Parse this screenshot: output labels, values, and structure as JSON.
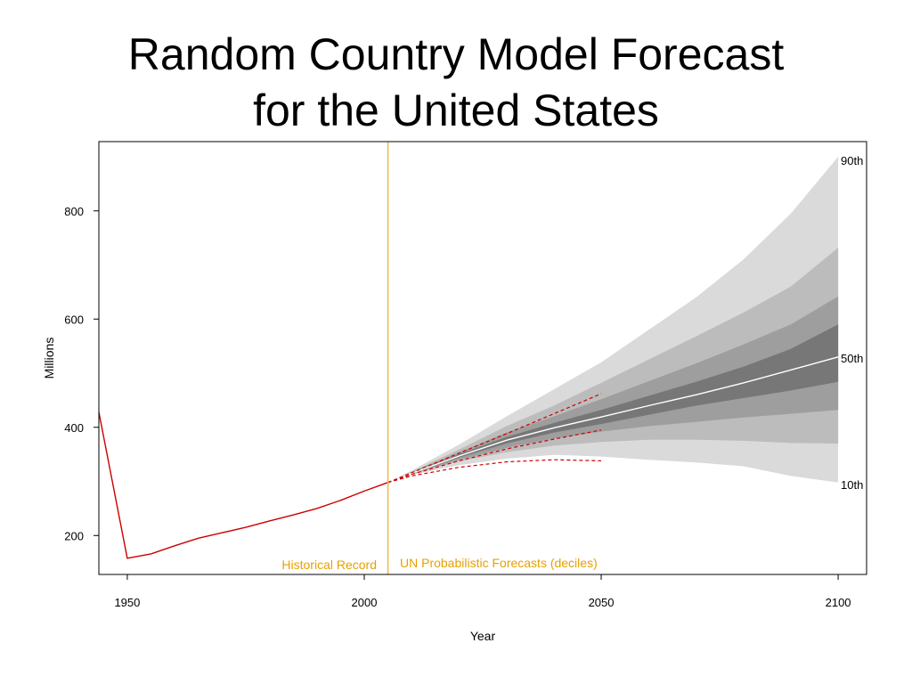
{
  "title": {
    "line1": "Random Country Model Forecast",
    "line2": "for the United States"
  },
  "chart_data": {
    "type": "area",
    "xlabel": "Year",
    "ylabel": "Millions",
    "xlim": [
      1944,
      2106
    ],
    "ylim": [
      128,
      928
    ],
    "xticks": [
      1950,
      2000,
      2050,
      2100
    ],
    "yticks": [
      200,
      400,
      600,
      800
    ],
    "grid": false,
    "divider_year": 2005,
    "divider_color": "#f0b840",
    "forecast_color": "#e8a000",
    "history_color": "#cc0000",
    "band_colors": [
      "#dadada",
      "#bcbcbc",
      "#9e9e9e",
      "#777777"
    ],
    "median_color": "#ffffff",
    "annotations": {
      "historical_label": "Historical Record",
      "forecast_label": "UN Probabilistic Forecasts (deciles)",
      "p90": "90th",
      "p50": "50th",
      "p10": "10th"
    },
    "historical": {
      "x": [
        1944,
        1950,
        1955,
        1960,
        1965,
        1970,
        1975,
        1980,
        1985,
        1990,
        1995,
        2000,
        2005
      ],
      "y": [
        428,
        158,
        166,
        181,
        195,
        205,
        215,
        227,
        238,
        250,
        265,
        282,
        298
      ]
    },
    "forecast": {
      "x": [
        2005,
        2010,
        2020,
        2030,
        2040,
        2050,
        2060,
        2070,
        2080,
        2090,
        2100
      ],
      "deciles": {
        "p10": [
          298,
          312,
          330,
          342,
          349,
          346,
          340,
          335,
          328,
          310,
          298
        ],
        "p20": [
          298,
          313,
          337,
          354,
          366,
          373,
          377,
          377,
          375,
          371,
          370
        ],
        "p30": [
          298,
          314,
          340,
          362,
          379,
          392,
          402,
          410,
          418,
          425,
          432
        ],
        "p40": [
          298,
          314,
          344,
          370,
          390,
          406,
          423,
          440,
          454,
          468,
          484
        ],
        "p50": [
          298,
          315,
          347,
          376,
          399,
          419,
          440,
          460,
          482,
          506,
          530
        ],
        "p60": [
          298,
          316,
          350,
          382,
          408,
          432,
          458,
          484,
          512,
          545,
          590
        ],
        "p70": [
          298,
          317,
          354,
          390,
          420,
          452,
          485,
          518,
          553,
          590,
          642
        ],
        "p80": [
          298,
          318,
          359,
          402,
          440,
          482,
          525,
          568,
          612,
          660,
          732
        ],
        "p90": [
          298,
          320,
          368,
          420,
          470,
          520,
          580,
          640,
          710,
          795,
          900
        ]
      }
    },
    "red_projections": [
      {
        "x": [
          2005,
          2010,
          2020,
          2030,
          2040,
          2050
        ],
        "y": [
          298,
          316,
          352,
          388,
          425,
          462
        ]
      },
      {
        "x": [
          2005,
          2010,
          2020,
          2030,
          2040,
          2050
        ],
        "y": [
          298,
          313,
          338,
          360,
          378,
          395
        ]
      },
      {
        "x": [
          2005,
          2010,
          2020,
          2030,
          2040,
          2050
        ],
        "y": [
          298,
          310,
          326,
          336,
          340,
          338
        ]
      }
    ]
  }
}
